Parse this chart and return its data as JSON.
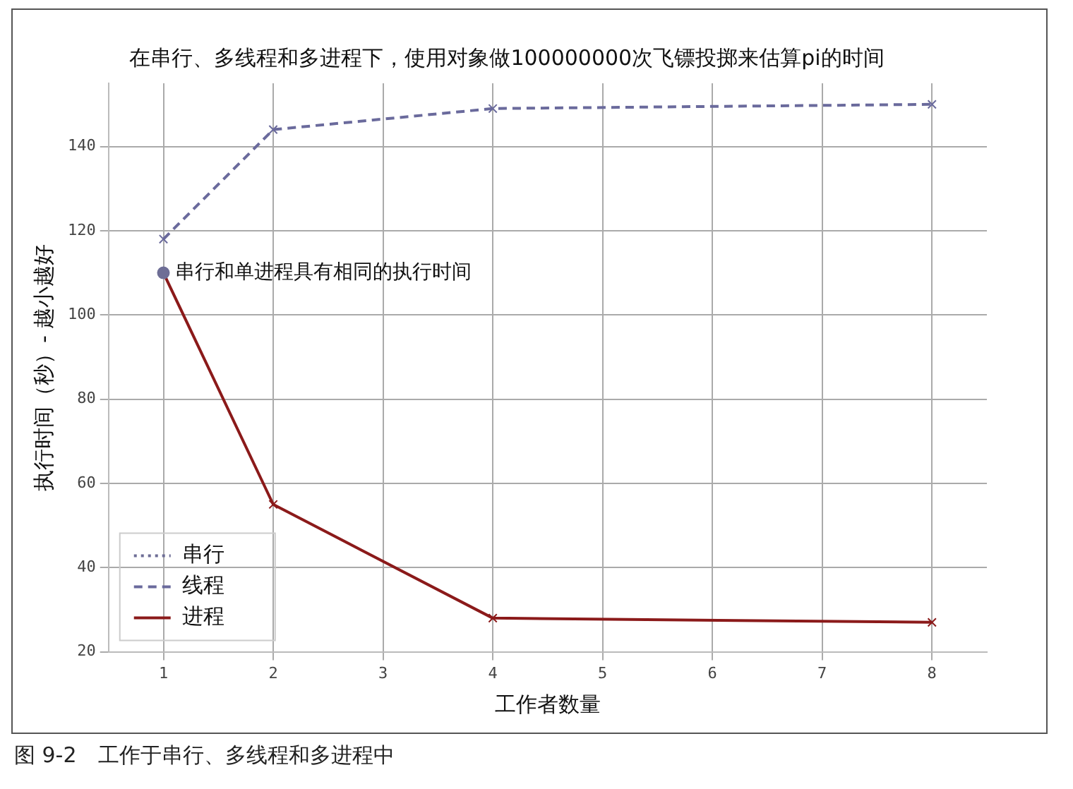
{
  "chart_data": {
    "type": "line",
    "title": "在串行、多线程和多进程下，使用对象做100000000次飞镖投掷来估算pi的时间",
    "xlabel": "工作者数量",
    "ylabel": "执行时间（秒）- 越小越好",
    "x": [
      1,
      2,
      4,
      8
    ],
    "series": [
      {
        "name": "串行",
        "color": "#6e6e96",
        "x": [
          1
        ],
        "values": [
          110
        ],
        "marker": "circle",
        "line_style": "dotted"
      },
      {
        "name": "线程",
        "color": "#6a6a9c",
        "values": [
          118,
          144,
          149,
          150
        ],
        "marker": "cross",
        "line_style": "dashed"
      },
      {
        "name": "进程",
        "color": "#8b1a1a",
        "values": [
          110,
          55,
          28,
          27
        ],
        "marker": "cross",
        "line_style": "solid"
      }
    ],
    "xlim": [
      0.5,
      8.5
    ],
    "xticks": [
      1,
      2,
      3,
      4,
      5,
      6,
      7,
      8
    ],
    "ylim": [
      20,
      155
    ],
    "yticks": [
      20,
      40,
      60,
      80,
      100,
      120,
      140
    ],
    "grid": true,
    "legend": "bottom left",
    "annotations": [
      {
        "text": "串行和单进程具有相同的执行时间",
        "x": 1,
        "y": 110
      },
      "图 9-2　工作于串行、多线程和多进程中"
    ]
  }
}
